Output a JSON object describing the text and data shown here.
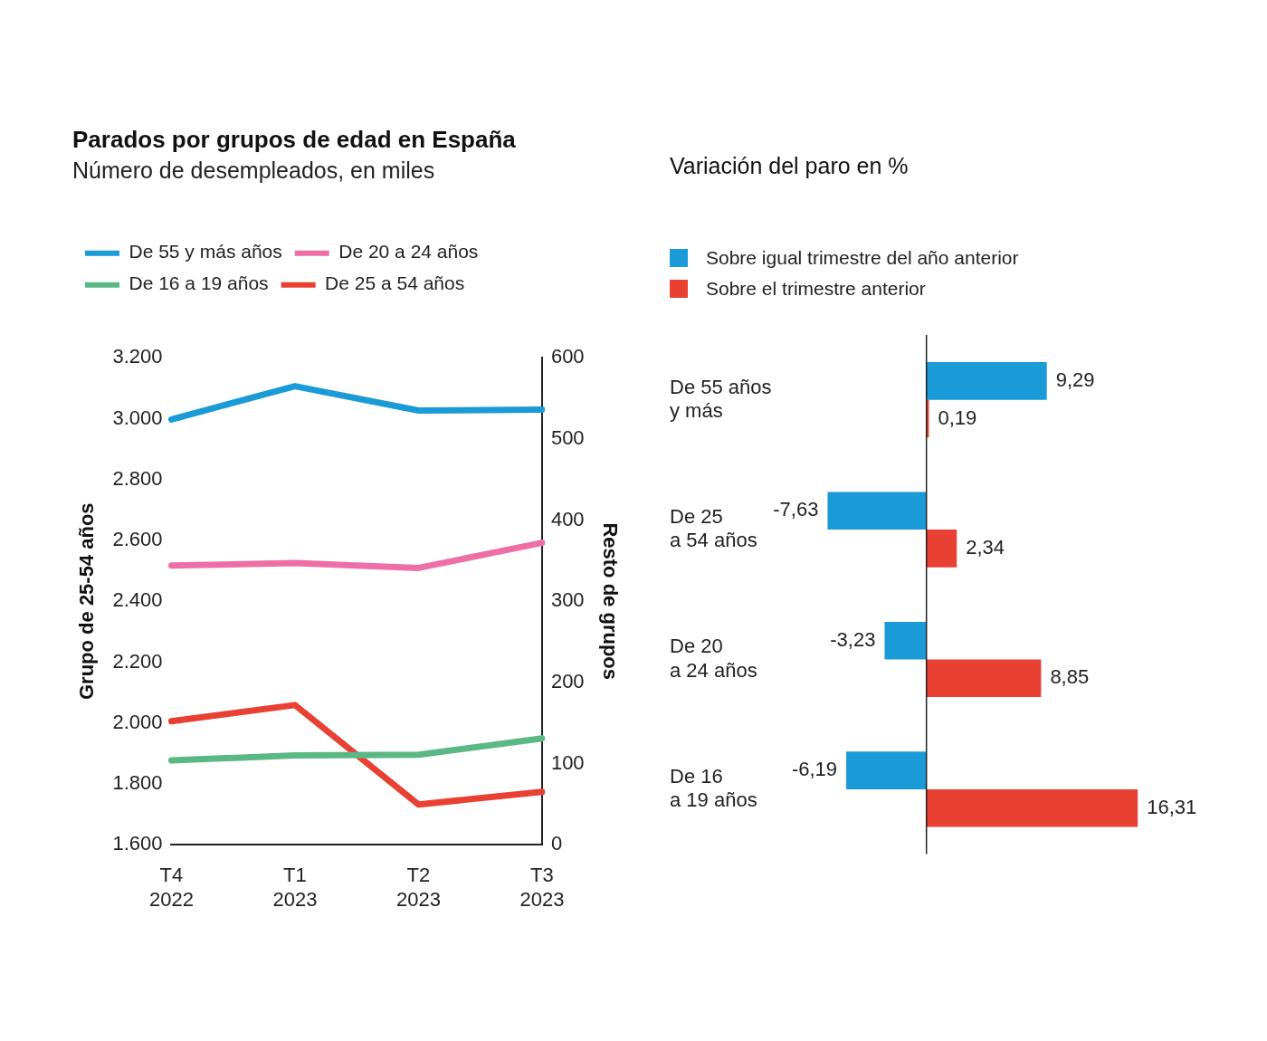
{
  "chart_data": [
    {
      "type": "line",
      "title": "Parados por grupos de edad en España",
      "subtitle": "Número de desempleados, en miles",
      "ylabel": "Grupo de 25-54 años",
      "y2label": "Resto de grupos",
      "categories": [
        "T4\n2022",
        "T1\n2023",
        "T2\n2023",
        "T3\n2023"
      ],
      "series": [
        {
          "name": "De 55 y más años",
          "color": "#1a9ad6",
          "axis": "y2",
          "values": [
            524,
            565,
            535,
            536
          ]
        },
        {
          "name": "De 20 a 24 años",
          "color": "#ee6fa7",
          "axis": "y2",
          "values": [
            344,
            347,
            341,
            372
          ]
        },
        {
          "name": "De 16 a 19 años",
          "color": "#5ab885",
          "axis": "y2",
          "values": [
            104,
            110,
            111,
            131
          ]
        },
        {
          "name": "De 25 a 54 años",
          "color": "#e84033",
          "values": [
            2006,
            2059,
            1732,
            1774
          ]
        }
      ],
      "ylim": [
        1600,
        3200
      ],
      "yticks": [
        {
          "value": 1600,
          "label": "1.600"
        },
        {
          "value": 1800,
          "label": "1.800"
        },
        {
          "value": 2000,
          "label": "2.000"
        },
        {
          "value": 2200,
          "label": "2.200"
        },
        {
          "value": 2400,
          "label": "2.400"
        },
        {
          "value": 2600,
          "label": "2.600"
        },
        {
          "value": 2800,
          "label": "2.800"
        },
        {
          "value": 3000,
          "label": "3.000"
        },
        {
          "value": 3200,
          "label": "3.200"
        }
      ],
      "y2lim": [
        0,
        600
      ],
      "y2ticks": [
        0,
        100,
        200,
        300,
        400,
        500,
        600
      ],
      "grid": false,
      "legend": "top left",
      "marker": "none",
      "line_style": "solid"
    },
    {
      "type": "bar",
      "orientation": "horizontal",
      "title": "Variación del paro en %",
      "categories": [
        "De 55 años\ny más",
        "De 25\na 54 años",
        "De 20\na 24 años",
        "De 16\na 19 años"
      ],
      "series": [
        {
          "name": "Sobre igual trimestre del año anterior",
          "color": "#1a9ad6",
          "values": [
            9.29,
            -7.63,
            -3.23,
            -6.19
          ],
          "value_labels": [
            "9,29",
            "-7,63",
            "-3,23",
            "-6,19"
          ]
        },
        {
          "name": "Sobre el trimestre anterior",
          "color": "#e84033",
          "values": [
            0.19,
            2.34,
            8.85,
            16.31
          ],
          "value_labels": [
            "0,19",
            "2,34",
            "8,85",
            "16,31"
          ]
        }
      ],
      "grid": false,
      "legend": "top left"
    }
  ]
}
